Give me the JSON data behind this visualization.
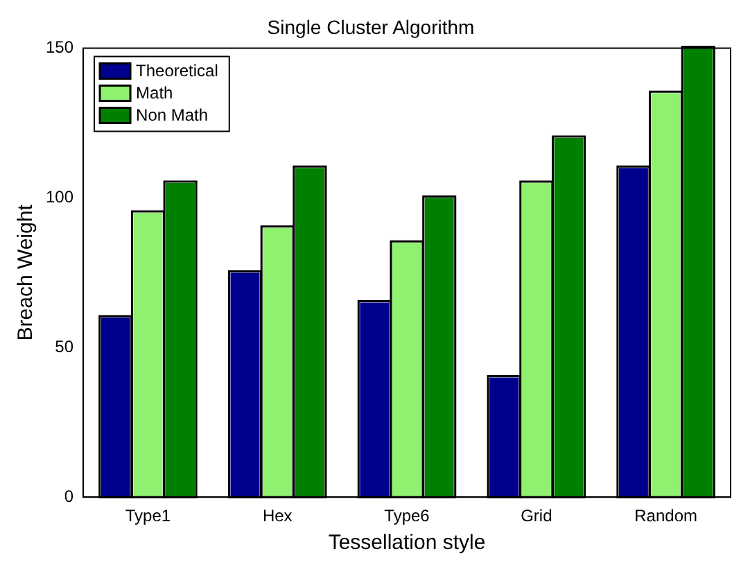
{
  "chart_data": {
    "type": "bar",
    "title": "Single Cluster Algorithm",
    "xlabel": "Tessellation style",
    "ylabel": "Breach Weight",
    "categories": [
      "Type1",
      "Hex",
      "Type6",
      "Grid",
      "Random"
    ],
    "series": [
      {
        "name": "Theoretical",
        "color": "#00008f",
        "values": [
          60,
          75,
          65,
          40,
          110
        ]
      },
      {
        "name": "Math",
        "color": "#90f070",
        "values": [
          95,
          90,
          85,
          105,
          135
        ]
      },
      {
        "name": "Non Math",
        "color": "#008000",
        "values": [
          105,
          110,
          100,
          120,
          150
        ]
      }
    ],
    "ylim": [
      0,
      150
    ],
    "yticks": [
      0,
      50,
      100,
      150
    ],
    "legend": "top left"
  }
}
